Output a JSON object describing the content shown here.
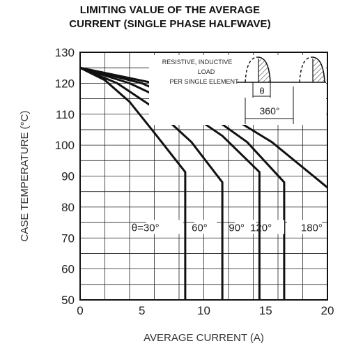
{
  "chart_data": {
    "type": "line",
    "title": [
      "LIMITING VALUE OF THE AVERAGE",
      "CURRENT (SINGLE PHASE HALFWAVE)"
    ],
    "xlabel": "AVERAGE CURRENT (A)",
    "ylabel": "CASE TEMPERATURE (°C)",
    "xlim": [
      0,
      20
    ],
    "ylim": [
      50,
      130
    ],
    "x_ticks": [
      0,
      5,
      10,
      15,
      20
    ],
    "y_ticks": [
      50,
      60,
      70,
      80,
      90,
      100,
      110,
      120,
      130
    ],
    "grid": true,
    "series": [
      {
        "name": "θ=30°",
        "points": [
          [
            0,
            125
          ],
          [
            2,
            121
          ],
          [
            4,
            114
          ],
          [
            6,
            104
          ],
          [
            8.5,
            91.3
          ],
          [
            8.5,
            50
          ]
        ]
      },
      {
        "name": "60°",
        "points": [
          [
            0,
            125
          ],
          [
            3,
            120
          ],
          [
            6,
            112
          ],
          [
            9,
            101
          ],
          [
            11.5,
            88
          ],
          [
            11.5,
            50
          ]
        ]
      },
      {
        "name": "90°",
        "points": [
          [
            0,
            125
          ],
          [
            4,
            120
          ],
          [
            8,
            112.5
          ],
          [
            11.5,
            103
          ],
          [
            14.5,
            91.3
          ],
          [
            14.5,
            50
          ]
        ]
      },
      {
        "name": "120°",
        "points": [
          [
            0,
            125
          ],
          [
            5,
            120
          ],
          [
            10,
            111
          ],
          [
            13.5,
            101
          ],
          [
            16.5,
            88
          ],
          [
            16.5,
            50
          ]
        ]
      },
      {
        "name": "180°",
        "points": [
          [
            0,
            125
          ],
          [
            6,
            120
          ],
          [
            11,
            112
          ],
          [
            15.5,
            101
          ],
          [
            20,
            86.3
          ]
        ]
      }
    ],
    "annotations": {
      "legend_text": [
        "RESISTIVE, INDUCTIVE",
        "LOAD",
        "PER SINGLE ELEMENT"
      ],
      "theta_label": "θ",
      "period_label": "360°"
    }
  }
}
